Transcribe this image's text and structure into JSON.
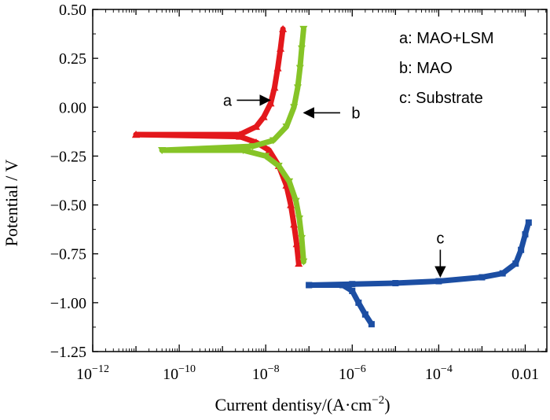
{
  "chart_data": {
    "type": "line",
    "title": "",
    "xlabel": "Current dentisy/(A·cm⁻²)",
    "ylabel": "Potential / V",
    "xscale": "log",
    "xlim_exp": [
      -12,
      -1.5
    ],
    "ylim": [
      -1.25,
      0.5
    ],
    "x_ticks": [
      {
        "exp": -12,
        "base": "10",
        "sup": "−12"
      },
      {
        "exp": -10,
        "base": "10",
        "sup": "−10"
      },
      {
        "exp": -8,
        "base": "10",
        "sup": "−8"
      },
      {
        "exp": -6,
        "base": "10",
        "sup": "−6"
      },
      {
        "exp": -4,
        "base": "10",
        "sup": "−4"
      },
      {
        "exp": -2,
        "base": "0.01",
        "sup": ""
      }
    ],
    "y_ticks": [
      {
        "value": 0.5,
        "label": "0.50"
      },
      {
        "value": 0.25,
        "label": "0.25"
      },
      {
        "value": 0.0,
        "label": "0.00"
      },
      {
        "value": -0.25,
        "label": "−0.25"
      },
      {
        "value": -0.5,
        "label": "−0.50"
      },
      {
        "value": -0.75,
        "label": "−0.75"
      },
      {
        "value": -1.0,
        "label": "−1.00"
      },
      {
        "value": -1.25,
        "label": "−1.25"
      }
    ],
    "legend": [
      "a: MAO+LSM",
      "b: MAO",
      "c: Substrate"
    ],
    "legend_position": "top-right",
    "series": [
      {
        "id": "a",
        "color": "#e3181c",
        "marker": "triangle-up",
        "anodic": [
          [
            2.5e-08,
            0.4
          ],
          [
            2.2e-08,
            0.3
          ],
          [
            1.9e-08,
            0.2
          ],
          [
            1.6e-08,
            0.1
          ],
          [
            1.3e-08,
            0.02
          ],
          [
            9e-09,
            -0.05
          ],
          [
            6e-09,
            -0.1
          ],
          [
            2.5e-09,
            -0.14
          ],
          [
            1e-11,
            -0.14
          ]
        ],
        "cathodic": [
          [
            1e-11,
            -0.14
          ],
          [
            2.5e-09,
            -0.15
          ],
          [
            6e-09,
            -0.18
          ],
          [
            1.2e-08,
            -0.22
          ],
          [
            2e-08,
            -0.3
          ],
          [
            3e-08,
            -0.4
          ],
          [
            3.8e-08,
            -0.5
          ],
          [
            4.5e-08,
            -0.6
          ],
          [
            5.2e-08,
            -0.7
          ],
          [
            5.8e-08,
            -0.8
          ]
        ]
      },
      {
        "id": "b",
        "color": "#86c427",
        "marker": "triangle-down",
        "anodic": [
          [
            7.5e-08,
            0.4
          ],
          [
            6.8e-08,
            0.3
          ],
          [
            6.2e-08,
            0.2
          ],
          [
            5.5e-08,
            0.1
          ],
          [
            4.5e-08,
            0.0
          ],
          [
            3e-08,
            -0.1
          ],
          [
            1.5e-08,
            -0.17
          ],
          [
            5e-09,
            -0.2
          ],
          [
            4e-11,
            -0.22
          ]
        ],
        "cathodic": [
          [
            4e-11,
            -0.22
          ],
          [
            3e-09,
            -0.22
          ],
          [
            1e-08,
            -0.25
          ],
          [
            2e-08,
            -0.3
          ],
          [
            3.5e-08,
            -0.38
          ],
          [
            5e-08,
            -0.48
          ],
          [
            6e-08,
            -0.57
          ],
          [
            6.8e-08,
            -0.67
          ],
          [
            7.5e-08,
            -0.79
          ]
        ]
      },
      {
        "id": "c",
        "color": "#1c4ea3",
        "marker": "square",
        "anodic": [
          [
            1e-07,
            -0.91
          ],
          [
            1e-06,
            -0.905
          ],
          [
            1e-05,
            -0.9
          ],
          [
            0.0001,
            -0.89
          ],
          [
            0.001,
            -0.87
          ],
          [
            0.003,
            -0.85
          ],
          [
            0.006,
            -0.8
          ],
          [
            0.008,
            -0.73
          ],
          [
            0.01,
            -0.65
          ],
          [
            0.012,
            -0.59
          ]
        ],
        "cathodic": [
          [
            1e-07,
            -0.91
          ],
          [
            6e-07,
            -0.91
          ],
          [
            1e-06,
            -0.94
          ],
          [
            1.4e-06,
            -1.0
          ],
          [
            2e-06,
            -1.06
          ],
          [
            2.8e-06,
            -1.11
          ]
        ]
      }
    ],
    "annotations": [
      {
        "text": "a",
        "target_series": "a",
        "direction": "right"
      },
      {
        "text": "b",
        "target_series": "b",
        "direction": "left"
      },
      {
        "text": "c",
        "target_series": "c",
        "direction": "down"
      }
    ]
  }
}
